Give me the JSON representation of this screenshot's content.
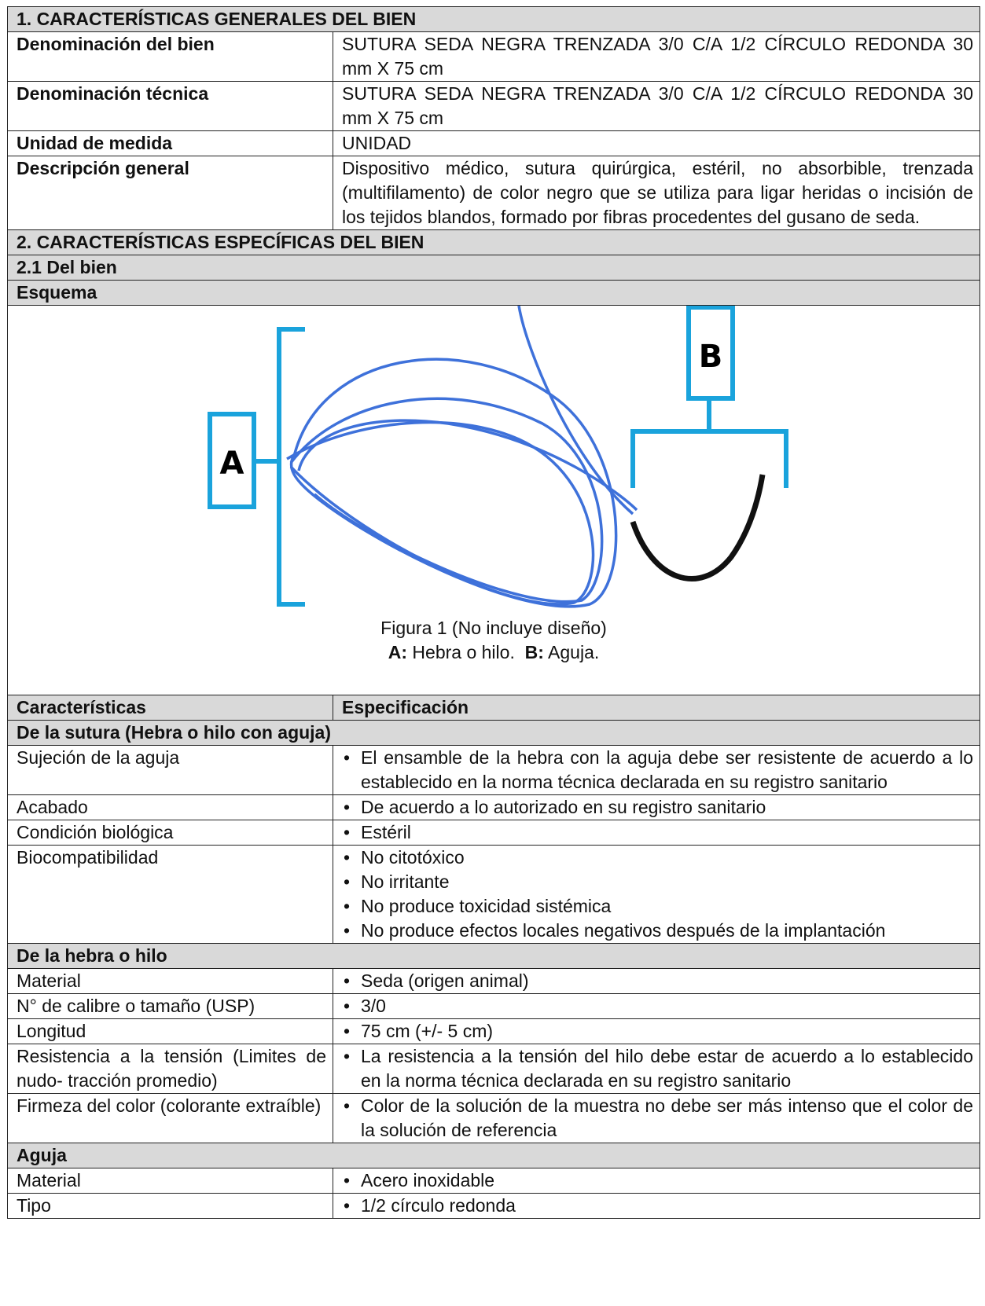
{
  "section1": {
    "title": "1. CARACTERÍSTICAS GENERALES DEL BIEN",
    "rows": [
      [
        "Denominación del bien",
        "SUTURA SEDA NEGRA TRENZADA 3/0 C/A 1/2 CÍRCULO REDONDA 30 mm X 75 cm"
      ],
      [
        "Denominación técnica",
        "SUTURA SEDA NEGRA TRENZADA 3/0 C/A 1/2 CÍRCULO REDONDA 30 mm X 75 cm"
      ],
      [
        "Unidad de medida",
        "UNIDAD"
      ],
      [
        "Descripción general",
        "Dispositivo médico, sutura quirúrgica, estéril, no absorbible, trenzada (multifilamento) de color negro que se utiliza para ligar heridas o incisión de los tejidos blandos, formado por fibras procedentes del gusano de seda."
      ]
    ]
  },
  "section2": {
    "title": "2. CARACTERÍSTICAS ESPECÍFICAS DEL BIEN",
    "subtitle": "2.1 Del bien",
    "schema_title": "Esquema",
    "figure": {
      "label_a": "A",
      "label_b": "B",
      "caption": "Figura 1 (No incluye diseño)",
      "legend": {
        "a_key": "A:",
        "a_text": "Hebra o hilo.",
        "b_key": "B:",
        "b_text": "Aguja."
      }
    }
  },
  "spec": {
    "header": [
      "Características",
      "Especificación"
    ],
    "groups": [
      {
        "title": "De la sutura (Hebra o hilo con aguja)",
        "rows": [
          {
            "label": "Sujeción de la aguja",
            "items": [
              "El ensamble de la hebra con la aguja debe ser resistente de acuerdo a lo establecido en la norma técnica declarada en su registro sanitario"
            ]
          },
          {
            "label": "Acabado",
            "items": [
              "De acuerdo a lo autorizado en su registro sanitario"
            ]
          },
          {
            "label": "Condición biológica",
            "items": [
              "Estéril"
            ]
          },
          {
            "label": "Biocompatibilidad",
            "items": [
              "No citotóxico",
              "No irritante",
              "No produce toxicidad sistémica",
              "No produce efectos locales negativos después de la implantación"
            ]
          }
        ]
      },
      {
        "title": "De la hebra o hilo",
        "rows": [
          {
            "label": "Material",
            "items": [
              "Seda (origen animal)"
            ]
          },
          {
            "label": "N° de calibre o tamaño (USP)",
            "items": [
              "3/0"
            ]
          },
          {
            "label": "Longitud",
            "items": [
              "75 cm  (+/- 5 cm)"
            ]
          },
          {
            "label": "Resistencia a la tensión (Limites de nudo- tracción promedio)",
            "items": [
              "La resistencia a la tensión del hilo debe estar de acuerdo a lo establecido en la norma técnica declarada en su registro sanitario"
            ]
          },
          {
            "label": "Firmeza del color (colorante extraíble)",
            "items": [
              "Color de la solución de la muestra no debe ser más intenso que el color de la solución de referencia"
            ]
          }
        ]
      },
      {
        "title": "Aguja",
        "rows": [
          {
            "label": "Material",
            "items": [
              "Acero inoxidable"
            ]
          },
          {
            "label": "Tipo",
            "items": [
              "1/2 círculo redonda"
            ]
          }
        ]
      }
    ]
  }
}
